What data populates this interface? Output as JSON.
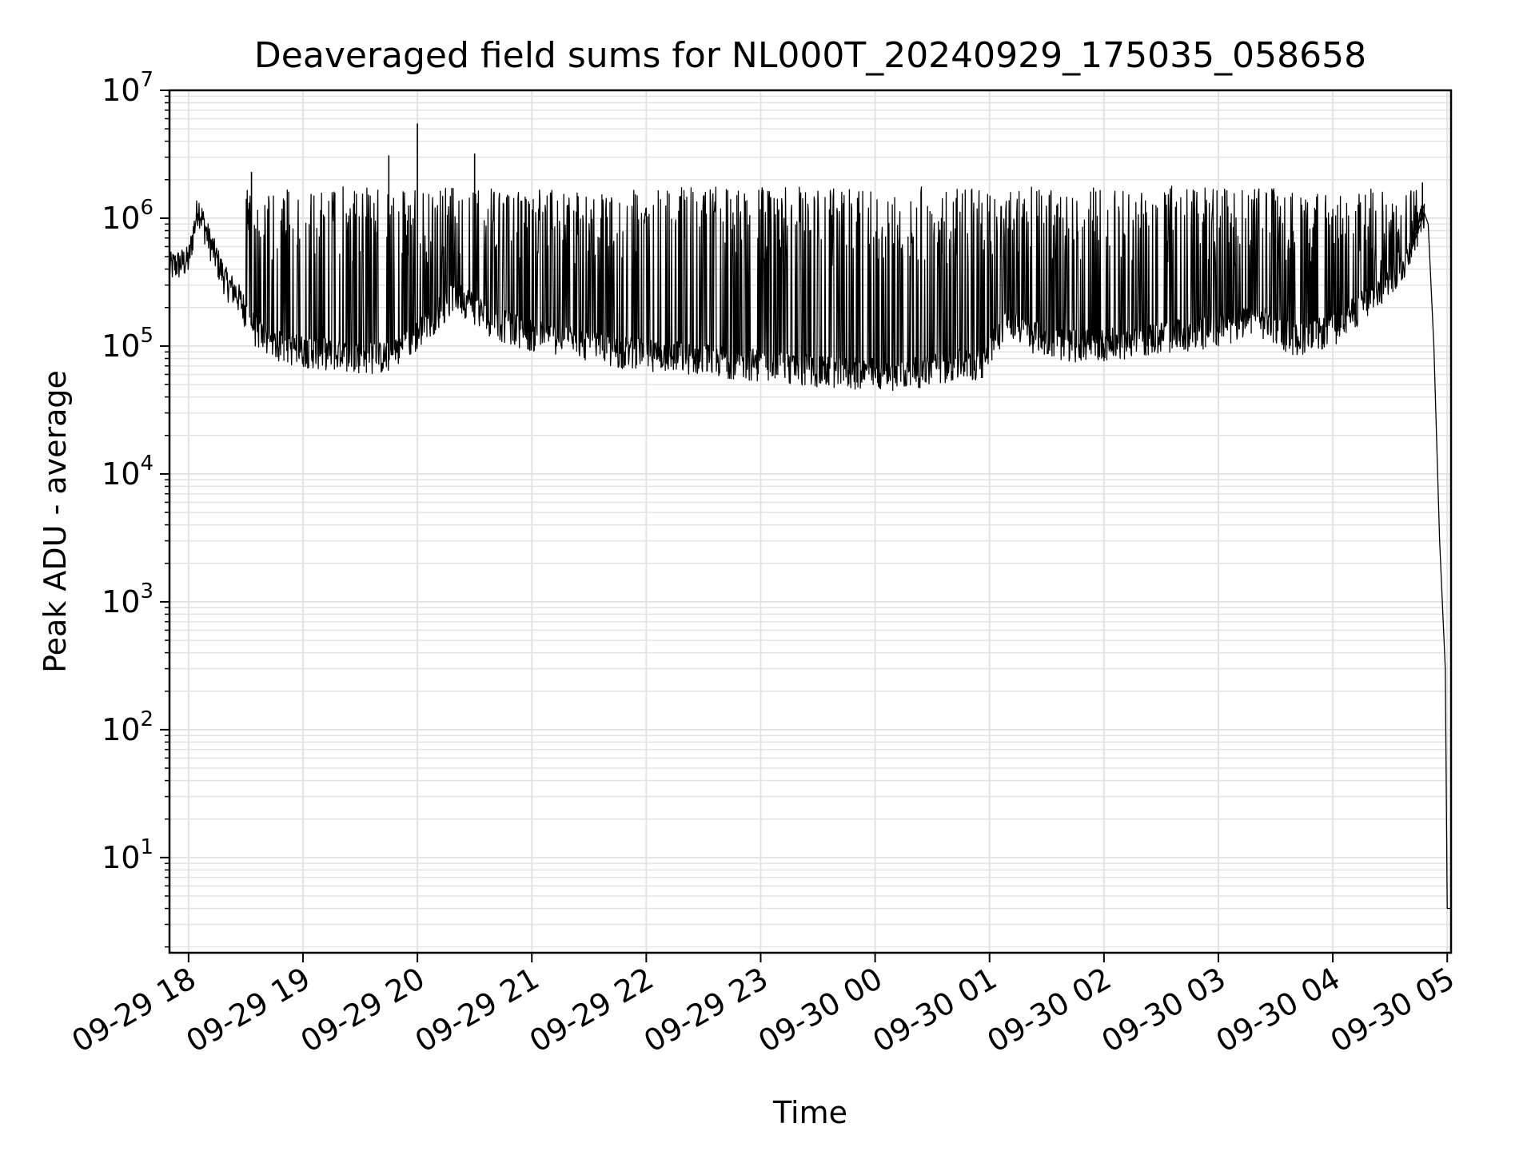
{
  "chart_data": {
    "type": "line",
    "title": "Deaveraged field sums for NL000T_20240929_175035_058658",
    "xlabel": "Time",
    "ylabel": "Peak ADU - average",
    "yscale": "log",
    "ylim": [
      1.8,
      10000000
    ],
    "xlim": [
      "2024-09-29 17:50",
      "2024-09-30 05:02"
    ],
    "grid": true,
    "x_ticks": [
      "09-29 18",
      "09-29 19",
      "09-29 20",
      "09-29 21",
      "09-29 22",
      "09-29 23",
      "09-30 00",
      "09-30 01",
      "09-30 02",
      "09-30 03",
      "09-30 04",
      "09-30 05"
    ],
    "y_ticks": [
      {
        "base": "10",
        "exp": "1"
      },
      {
        "base": "10",
        "exp": "2"
      },
      {
        "base": "10",
        "exp": "3"
      },
      {
        "base": "10",
        "exp": "4"
      },
      {
        "base": "10",
        "exp": "5"
      },
      {
        "base": "10",
        "exp": "6"
      },
      {
        "base": "10",
        "exp": "7"
      }
    ],
    "series": [
      {
        "color": "#000000",
        "x": [
          "2024-09-29 17:50",
          "2024-09-29 18:00",
          "2024-09-29 18:05",
          "2024-09-29 18:10",
          "2024-09-29 18:15",
          "2024-09-29 18:20",
          "2024-09-29 18:25",
          "2024-09-29 18:30",
          "2024-09-29 18:35",
          "2024-09-29 18:40",
          "2024-09-29 18:45",
          "2024-09-29 18:50",
          "2024-09-29 19:00",
          "2024-09-29 19:15",
          "2024-09-29 19:30",
          "2024-09-29 19:45",
          "2024-09-29 20:00",
          "2024-09-29 20:20",
          "2024-09-29 20:40",
          "2024-09-29 21:00",
          "2024-09-29 21:20",
          "2024-09-29 21:40",
          "2024-09-29 22:00",
          "2024-09-29 22:20",
          "2024-09-29 22:40",
          "2024-09-29 23:00",
          "2024-09-29 23:20",
          "2024-09-29 23:40",
          "2024-09-30 00:00",
          "2024-09-30 00:20",
          "2024-09-30 00:40",
          "2024-09-30 00:55",
          "2024-09-30 01:10",
          "2024-09-30 01:20",
          "2024-09-30 01:40",
          "2024-09-30 02:00",
          "2024-09-30 02:20",
          "2024-09-30 02:40",
          "2024-09-30 03:00",
          "2024-09-30 03:20",
          "2024-09-30 03:40",
          "2024-09-30 04:00",
          "2024-09-30 04:15",
          "2024-09-30 04:30",
          "2024-09-30 04:40",
          "2024-09-30 04:48",
          "2024-09-30 04:50",
          "2024-09-30 04:53",
          "2024-09-30 04:56",
          "2024-09-30 04:59",
          "2024-09-30 05:00",
          "2024-09-30 05:02"
        ],
        "baseline": [
          400000,
          450000,
          1200000,
          700000,
          450000,
          300000,
          250000,
          180000,
          130000,
          110000,
          100000,
          95000,
          90000,
          85000,
          80000,
          80000,
          120000,
          250000,
          150000,
          120000,
          110000,
          90000,
          85000,
          80000,
          75000,
          70000,
          65000,
          60000,
          60000,
          60000,
          70000,
          70000,
          160000,
          120000,
          100000,
          100000,
          110000,
          120000,
          130000,
          160000,
          110000,
          130000,
          200000,
          300000,
          500000,
          1100000,
          900000,
          100000,
          3000,
          300,
          4,
          4
        ],
        "spikes_upper": [
          1700000,
          1800000,
          1750000,
          1700000,
          1700000,
          1800000,
          1800000,
          1750000,
          1700000,
          1700000,
          1650000,
          1600000,
          1700000,
          1750000,
          1650000,
          1700000,
          1600000,
          1700000,
          1750000,
          1700000,
          1650000,
          1700000,
          1750000,
          1700000,
          1800000,
          1650000,
          1700000,
          1750000,
          1800000,
          1700000,
          1750000,
          1650000,
          1600000,
          1700000,
          1800000,
          1750000,
          1700000,
          1650000,
          1700000,
          1750000
        ],
        "notable_peaks": [
          {
            "x": "2024-09-29 18:33",
            "y": 2300000
          },
          {
            "x": "2024-09-29 19:45",
            "y": 3100000
          },
          {
            "x": "2024-09-29 20:00",
            "y": 5500000
          },
          {
            "x": "2024-09-29 20:30",
            "y": 3200000
          },
          {
            "x": "2024-09-30 04:47",
            "y": 1900000
          }
        ]
      }
    ]
  }
}
